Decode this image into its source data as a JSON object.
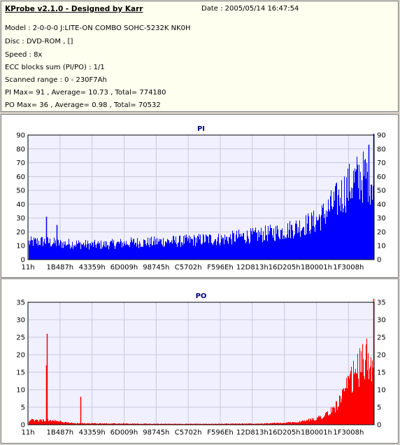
{
  "header": {
    "title": "KProbe v2.1.0 - Designed by Karr",
    "date": "Date : 2005/05/14 16:47:54",
    "model": "Model : 2-0-0-0 J:LITE-ON COMBO SOHC-5232K NK0H",
    "disc": "Disc : DVD-ROM ,  []",
    "speed": "Speed : 8x",
    "ecc": "ECC blocks sum (PI/PO) : 1/1",
    "range": "Scanned range : 0 - 230F7Ah",
    "pi_stats": "PI Max= 91 , Average= 10.73 , Total= 774180",
    "po_stats": "PO Max= 36 , Average= 0.98 , Total= 70532"
  },
  "colors": {
    "pi": "#0000ff",
    "po": "#ff0000",
    "plot_bg": "#f0f0ff",
    "grid": "#c8c8dc",
    "title": "#000080"
  },
  "chart_data": [
    {
      "type": "bar",
      "title": "PI",
      "xlabel": "",
      "ylabel": "",
      "x_ticks": [
        "11h",
        "1B487h",
        "43359h",
        "6D009h",
        "98745h",
        "C5702h",
        "F596Eh",
        "12D813h",
        "16D205h",
        "1B0001h",
        "1F3008h"
      ],
      "y_ticks": [
        0,
        10,
        20,
        30,
        40,
        50,
        60,
        70,
        80,
        90
      ],
      "ylim": [
        0,
        90
      ],
      "grid": true,
      "x_range": [
        0,
        2297722
      ],
      "envelope": [
        [
          0,
          15
        ],
        [
          100000,
          16
        ],
        [
          200000,
          14
        ],
        [
          300000,
          14
        ],
        [
          400000,
          13
        ],
        [
          500000,
          13
        ],
        [
          600000,
          14
        ],
        [
          700000,
          15
        ],
        [
          800000,
          15
        ],
        [
          900000,
          16
        ],
        [
          1000000,
          16
        ],
        [
          1100000,
          17
        ],
        [
          1200000,
          18
        ],
        [
          1300000,
          18
        ],
        [
          1400000,
          20
        ],
        [
          1500000,
          21
        ],
        [
          1600000,
          23
        ],
        [
          1700000,
          25
        ],
        [
          1800000,
          29
        ],
        [
          1900000,
          33
        ],
        [
          1950000,
          38
        ],
        [
          2000000,
          45
        ],
        [
          2050000,
          52
        ],
        [
          2100000,
          60
        ],
        [
          2150000,
          67
        ],
        [
          2200000,
          72
        ],
        [
          2250000,
          73
        ],
        [
          2297722,
          70
        ]
      ],
      "spikes": [
        [
          120000,
          31
        ],
        [
          190000,
          25
        ],
        [
          2260000,
          83
        ],
        [
          2297722,
          91
        ]
      ]
    },
    {
      "type": "bar",
      "title": "PO",
      "xlabel": "",
      "ylabel": "",
      "x_ticks": [
        "11h",
        "1B487h",
        "43359h",
        "6D009h",
        "98745h",
        "C5702h",
        "F596Eh",
        "12D813h",
        "16D205h",
        "1B0001h",
        "1F3008h"
      ],
      "y_ticks": [
        0,
        5,
        10,
        15,
        20,
        25,
        30,
        35
      ],
      "ylim": [
        0,
        35
      ],
      "grid": true,
      "x_range": [
        0,
        2297722
      ],
      "envelope": [
        [
          0,
          1.5
        ],
        [
          150000,
          1.5
        ],
        [
          300000,
          0.5
        ],
        [
          600000,
          0.4
        ],
        [
          900000,
          0.3
        ],
        [
          1200000,
          0.3
        ],
        [
          1500000,
          0.4
        ],
        [
          1700000,
          0.6
        ],
        [
          1800000,
          1
        ],
        [
          1900000,
          2
        ],
        [
          2000000,
          4
        ],
        [
          2050000,
          7
        ],
        [
          2100000,
          11
        ],
        [
          2150000,
          16
        ],
        [
          2200000,
          20
        ],
        [
          2250000,
          23
        ],
        [
          2297722,
          22
        ]
      ],
      "spikes": [
        [
          125000,
          26
        ],
        [
          122000,
          17
        ],
        [
          350000,
          8
        ],
        [
          2297722,
          36
        ]
      ]
    }
  ]
}
